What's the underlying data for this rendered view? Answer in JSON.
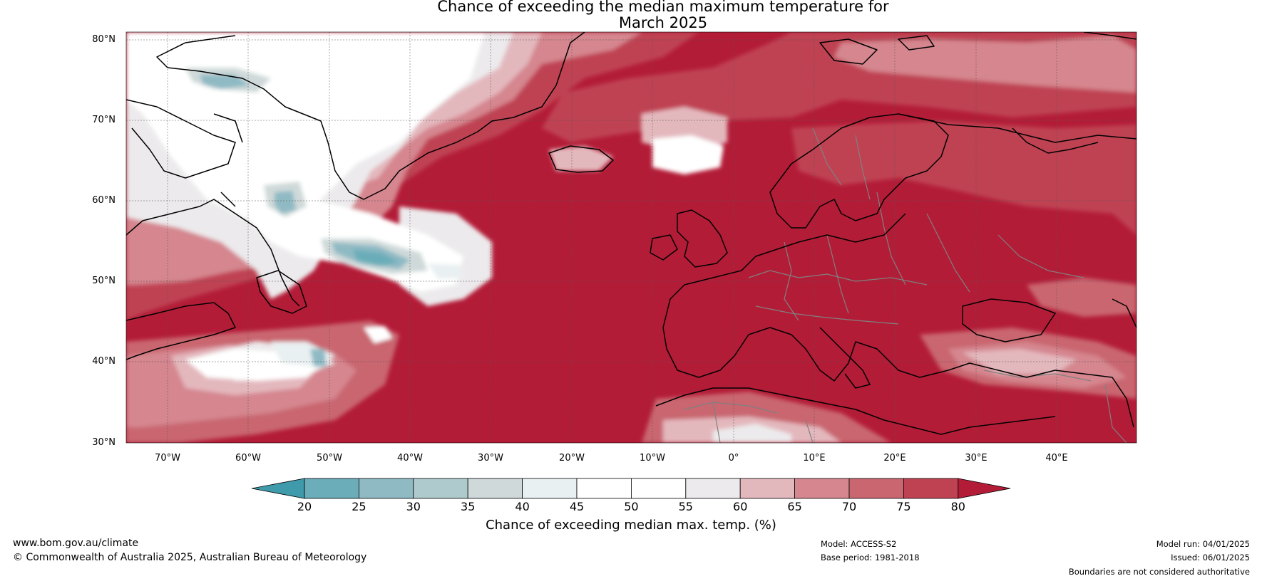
{
  "title_line1": "Chance of exceeding the median maximum temperature for",
  "title_line2": "March 2025",
  "lat_labels": [
    "80°N",
    "70°N",
    "60°N",
    "50°N",
    "40°N",
    "30°N"
  ],
  "lon_labels": [
    "70°W",
    "60°W",
    "50°W",
    "40°W",
    "30°W",
    "20°W",
    "10°W",
    "0°",
    "10°E",
    "20°E",
    "30°E",
    "40°E"
  ],
  "colorbar": {
    "ticks": [
      "20",
      "25",
      "30",
      "35",
      "40",
      "45",
      "50",
      "55",
      "60",
      "65",
      "70",
      "75",
      "80"
    ],
    "label": "Chance of exceeding median max. temp. (%)",
    "colors": {
      "below_20": "#3f9aab",
      "20_25": "#6badb9",
      "25_30": "#8fbac4",
      "30_35": "#aecacd",
      "35_40": "#cfd9d9",
      "40_45": "#e9f0f1",
      "45_50": "#ffffff",
      "50_55": "#ffffff",
      "55_60": "#eceaec",
      "60_65": "#e3b8bd",
      "65_70": "#d5868f",
      "70_75": "#c96670",
      "75_80": "#bf4252",
      "above_80": "#b31c37"
    }
  },
  "footer": {
    "website": "www.bom.gov.au/climate",
    "copyright": "© Commonwealth of Australia 2025, Australian Bureau of Meteorology",
    "model": "Model: ACCESS-S2",
    "base_period": "Base period: 1981-2018",
    "model_run": "Model run: 04/01/2025",
    "issued": "Issued: 06/01/2025",
    "disclaimer": "Boundaries are not considered authoritative"
  }
}
